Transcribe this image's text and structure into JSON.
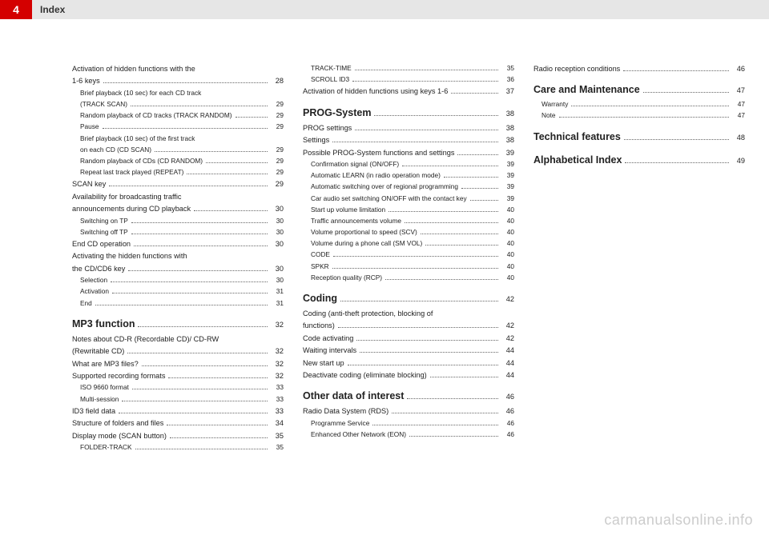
{
  "header": {
    "pageNumber": "4",
    "title": "Index"
  },
  "watermark": "carmanualsonline.info",
  "columns": [
    [
      {
        "level": 1,
        "label": "Activation of hidden functions with the",
        "page": "",
        "nodots": true
      },
      {
        "level": 1,
        "label": "1-6 keys",
        "page": "28"
      },
      {
        "level": 2,
        "label": "Brief playback (10 sec) for each CD track",
        "page": "",
        "nodots": true
      },
      {
        "level": 2,
        "label": "(TRACK SCAN)",
        "page": "29"
      },
      {
        "level": 2,
        "label": "Random playback of CD tracks  (TRACK RANDOM)",
        "page": "29"
      },
      {
        "level": 2,
        "label": "Pause",
        "page": "29"
      },
      {
        "level": 2,
        "label": "Brief playback (10 sec) of the first track",
        "page": "",
        "nodots": true
      },
      {
        "level": 2,
        "label": "on each CD (CD SCAN)",
        "page": "29"
      },
      {
        "level": 2,
        "label": "Random playback of CDs (CD RANDOM)",
        "page": "29"
      },
      {
        "level": 2,
        "label": "Repeat last track played (REPEAT)",
        "page": "29"
      },
      {
        "level": 1,
        "label": "SCAN key",
        "page": "29"
      },
      {
        "level": 1,
        "label": "Availability for broadcasting traffic",
        "page": "",
        "nodots": true
      },
      {
        "level": 1,
        "label": "announcements during CD playback",
        "page": "30"
      },
      {
        "level": 2,
        "label": "Switching on TP",
        "page": "30"
      },
      {
        "level": 2,
        "label": "Switching off TP",
        "page": "30"
      },
      {
        "level": 1,
        "label": "End CD operation",
        "page": "30"
      },
      {
        "level": 1,
        "label": "Activating the hidden functions with",
        "page": "",
        "nodots": true
      },
      {
        "level": 1,
        "label": "the CD/CD6 key",
        "page": "30"
      },
      {
        "level": 2,
        "label": "Selection",
        "page": "30"
      },
      {
        "level": 2,
        "label": "Activation",
        "page": "31"
      },
      {
        "level": 2,
        "label": "End",
        "page": "31"
      },
      {
        "level": 0,
        "label": "MP3 function",
        "page": "32"
      },
      {
        "level": 1,
        "label": "Notes about CD-R (Recordable CD)/ CD-RW",
        "page": "",
        "nodots": true
      },
      {
        "level": 1,
        "label": "(Rewritable CD)",
        "page": "32"
      },
      {
        "level": 1,
        "label": "What are MP3 files?",
        "page": "32"
      },
      {
        "level": 1,
        "label": "Supported recording formats",
        "page": "32"
      },
      {
        "level": 2,
        "label": "ISO 9660 format",
        "page": "33"
      },
      {
        "level": 2,
        "label": "Multi-session",
        "page": "33"
      },
      {
        "level": 1,
        "label": "ID3 field data",
        "page": "33"
      },
      {
        "level": 1,
        "label": "Structure of folders and files",
        "page": "34"
      },
      {
        "level": 1,
        "label": "Display mode (SCAN button)",
        "page": "35"
      },
      {
        "level": 2,
        "label": "FOLDER-TRACK",
        "page": "35"
      }
    ],
    [
      {
        "level": 2,
        "label": "TRACK-TIME",
        "page": "35"
      },
      {
        "level": 2,
        "label": "SCROLL ID3",
        "page": "36"
      },
      {
        "level": 1,
        "label": "Activation of hidden functions using keys 1-6",
        "page": "37"
      },
      {
        "level": 0,
        "label": "PROG-System",
        "page": "38"
      },
      {
        "level": 1,
        "label": "PROG settings",
        "page": "38"
      },
      {
        "level": 1,
        "label": "Settings",
        "page": "38"
      },
      {
        "level": 1,
        "label": "Possible PROG-System functions and settings",
        "page": "39"
      },
      {
        "level": 2,
        "label": "Confirmation signal (ON/OFF)",
        "page": "39"
      },
      {
        "level": 2,
        "label": "Automatic LEARN (in radio operation mode)",
        "page": "39"
      },
      {
        "level": 2,
        "label": "Automatic switching over of regional programming",
        "page": "39"
      },
      {
        "level": 2,
        "label": "Car audio set switching ON/OFF with the contact key",
        "page": "39"
      },
      {
        "level": 2,
        "label": "Start up volume limitation",
        "page": "40"
      },
      {
        "level": 2,
        "label": "Traffic announcements volume",
        "page": "40"
      },
      {
        "level": 2,
        "label": "Volume proportional to speed (SCV)",
        "page": "40"
      },
      {
        "level": 2,
        "label": "Volume during a phone call (SM VOL)",
        "page": "40"
      },
      {
        "level": 2,
        "label": "CODE",
        "page": "40"
      },
      {
        "level": 2,
        "label": "SPKR",
        "page": "40"
      },
      {
        "level": 2,
        "label": "Reception quality (RCP)",
        "page": "40"
      },
      {
        "level": 0,
        "label": "Coding",
        "page": "42"
      },
      {
        "level": 1,
        "label": "Coding (anti-theft protection, blocking of",
        "page": "",
        "nodots": true
      },
      {
        "level": 1,
        "label": "functions)",
        "page": "42"
      },
      {
        "level": 1,
        "label": "Code activating",
        "page": "42"
      },
      {
        "level": 1,
        "label": "Waiting intervals",
        "page": "44"
      },
      {
        "level": 1,
        "label": "New start up",
        "page": "44"
      },
      {
        "level": 1,
        "label": "Deactivate coding (eliminate blocking)",
        "page": "44"
      },
      {
        "level": 0,
        "label": "Other data of interest",
        "page": "46"
      },
      {
        "level": 1,
        "label": "Radio Data System (RDS)",
        "page": "46"
      },
      {
        "level": 2,
        "label": "Programme Service",
        "page": "46"
      },
      {
        "level": 2,
        "label": "Enhanced Other Network (EON)",
        "page": "46"
      }
    ],
    [
      {
        "level": 1,
        "label": "Radio reception conditions",
        "page": "46"
      },
      {
        "level": 0,
        "label": "Care and Maintenance",
        "page": "47"
      },
      {
        "level": 2,
        "label": "Warranty",
        "page": "47"
      },
      {
        "level": 2,
        "label": "Note",
        "page": "47"
      },
      {
        "level": 0,
        "label": "Technical features",
        "page": "48"
      },
      {
        "level": 0,
        "label": "Alphabetical Index",
        "page": "49"
      }
    ]
  ]
}
